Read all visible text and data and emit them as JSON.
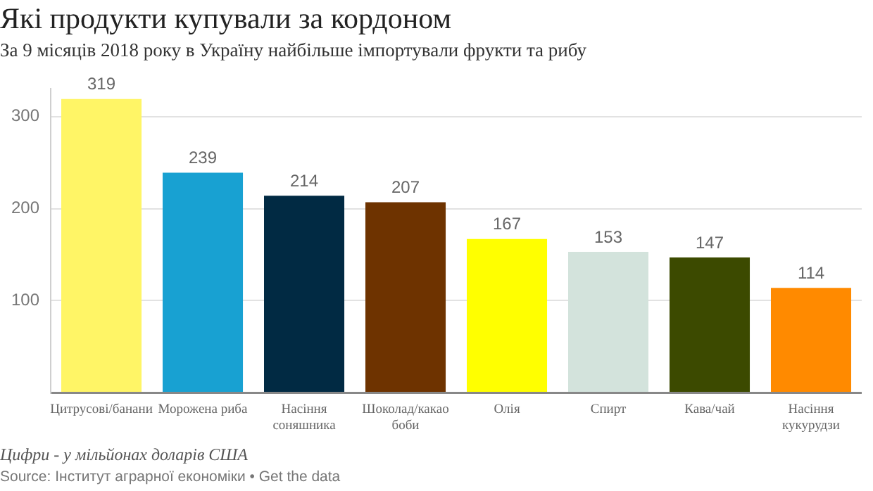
{
  "chart_data": {
    "type": "bar",
    "title": "Які продукти купували за кордоном",
    "subtitle": "За 9 місяців 2018 року в Україну найбільше імпортували фрукти та рибу",
    "categories": [
      "Цитрусові/банани",
      "Морожена риба",
      "Насіння соняшника",
      "Шоколад/какао боби",
      "Олія",
      "Спирт",
      "Кава/чай",
      "Насіння кукурудзи"
    ],
    "values": [
      319,
      239,
      214,
      207,
      167,
      153,
      147,
      114
    ],
    "colors": [
      "#fff566",
      "#18a1d2",
      "#012a43",
      "#6e3300",
      "#ffff00",
      "#d3e3dc",
      "#3c4a00",
      "#ff8a00"
    ],
    "ylim": [
      0,
      330
    ],
    "yticks": [
      {
        "value": 0,
        "label": null
      },
      100,
      200,
      300
    ],
    "grid": "y",
    "data_labels": true,
    "annotations": [
      "Цифри - у мільйонах доларів США",
      "Source: Інститут аграрної економіки • Get the data"
    ]
  }
}
